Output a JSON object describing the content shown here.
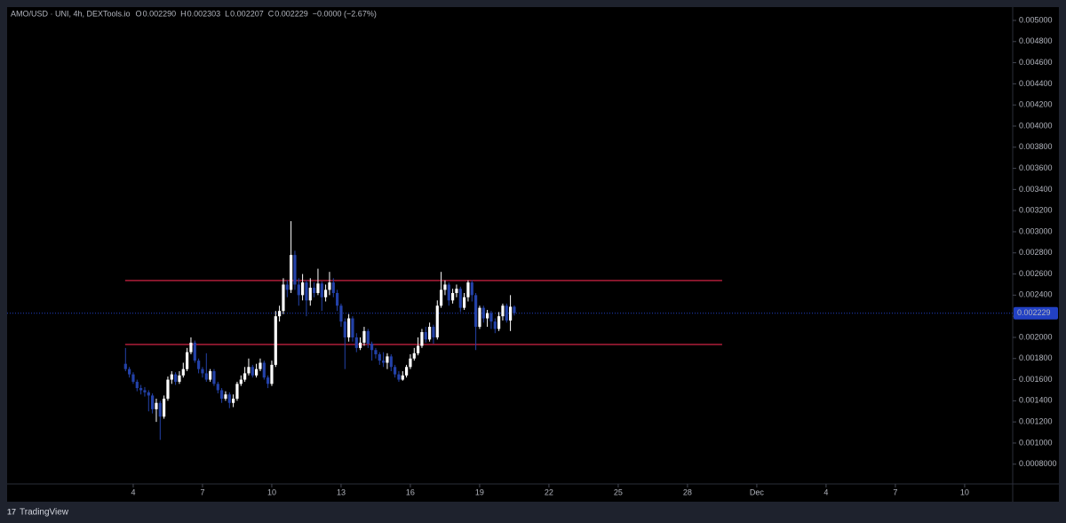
{
  "header": {
    "symbol": "AMO/USD · UNI, 4h, DEXTools.io",
    "ohlc": [
      {
        "key": "O",
        "value": "0.002290"
      },
      {
        "key": "H",
        "value": "0.002303"
      },
      {
        "key": "L",
        "value": "0.002207"
      },
      {
        "key": "C",
        "value": "0.002229"
      }
    ],
    "change": "−0.0000 (−2.67%)"
  },
  "footer": {
    "brand": "TradingView"
  },
  "chart_data": {
    "type": "candlestick",
    "up_color": "#ffffff",
    "down_color": "#2341a8",
    "x": [
      3.667,
      3.833,
      4,
      4.167,
      4.333,
      4.5,
      4.667,
      4.833,
      5,
      5.167,
      5.333,
      5.5,
      5.667,
      5.833,
      6,
      6.167,
      6.333,
      6.5,
      6.667,
      6.833,
      7,
      7.167,
      7.333,
      7.5,
      7.667,
      7.833,
      8,
      8.167,
      8.333,
      8.5,
      8.667,
      8.833,
      9,
      9.167,
      9.333,
      9.5,
      9.667,
      9.833,
      10,
      10.167,
      10.333,
      10.5,
      10.667,
      10.833,
      11,
      11.167,
      11.333,
      11.5,
      11.667,
      11.833,
      12,
      12.167,
      12.333,
      12.5,
      12.667,
      12.833,
      13,
      13.167,
      13.333,
      13.5,
      13.667,
      13.833,
      14,
      14.167,
      14.333,
      14.5,
      14.667,
      14.833,
      15,
      15.167,
      15.333,
      15.5,
      15.667,
      15.833,
      16,
      16.167,
      16.333,
      16.5,
      16.667,
      16.833,
      17,
      17.167,
      17.333,
      17.5,
      17.667,
      17.833,
      18,
      18.167,
      18.333,
      18.5,
      18.667,
      18.833,
      19,
      19.167,
      19.333,
      19.5,
      19.667,
      19.833,
      20,
      20.167,
      20.333,
      20.5
    ],
    "open": [
      0.00175,
      0.0017,
      0.00165,
      0.00158,
      0.00152,
      0.0015,
      0.00148,
      0.00145,
      0.00132,
      0.00138,
      0.00125,
      0.00142,
      0.0016,
      0.00165,
      0.00158,
      0.00164,
      0.0017,
      0.00186,
      0.00195,
      0.00178,
      0.0017,
      0.00166,
      0.0016,
      0.00168,
      0.00156,
      0.0015,
      0.00142,
      0.00146,
      0.00138,
      0.00142,
      0.00156,
      0.0016,
      0.00166,
      0.00172,
      0.00164,
      0.0017,
      0.00176,
      0.00162,
      0.00156,
      0.00174,
      0.0022,
      0.00225,
      0.0025,
      0.00245,
      0.00278,
      0.0025,
      0.0024,
      0.00252,
      0.00235,
      0.00247,
      0.00242,
      0.00251,
      0.00238,
      0.00245,
      0.00252,
      0.00242,
      0.0023,
      0.00215,
      0.002,
      0.00218,
      0.002,
      0.0019,
      0.00195,
      0.00206,
      0.00194,
      0.00188,
      0.00184,
      0.00178,
      0.00176,
      0.00182,
      0.00172,
      0.00165,
      0.0016,
      0.00164,
      0.00172,
      0.0018,
      0.00185,
      0.00192,
      0.00205,
      0.00198,
      0.0021,
      0.002,
      0.0023,
      0.00245,
      0.0025,
      0.00235,
      0.00242,
      0.00246,
      0.00228,
      0.00238,
      0.00252,
      0.0024,
      0.0021,
      0.00228,
      0.00218,
      0.00223,
      0.00215,
      0.00208,
      0.0022,
      0.0023,
      0.00216,
      0.00229
    ],
    "high": [
      0.0019,
      0.00172,
      0.00167,
      0.0016,
      0.00155,
      0.00153,
      0.0015,
      0.00147,
      0.00142,
      0.0014,
      0.00145,
      0.00163,
      0.00168,
      0.00167,
      0.00168,
      0.00176,
      0.0019,
      0.002,
      0.00197,
      0.0018,
      0.00172,
      0.00185,
      0.0017,
      0.0017,
      0.00158,
      0.00152,
      0.00149,
      0.00148,
      0.00146,
      0.00158,
      0.00164,
      0.00172,
      0.0018,
      0.00174,
      0.00175,
      0.0018,
      0.00178,
      0.00164,
      0.00178,
      0.00225,
      0.0023,
      0.00256,
      0.00254,
      0.0031,
      0.00282,
      0.00256,
      0.0026,
      0.00254,
      0.00256,
      0.00252,
      0.00265,
      0.00253,
      0.0025,
      0.00262,
      0.00256,
      0.00245,
      0.00232,
      0.00218,
      0.00222,
      0.0022,
      0.00204,
      0.002,
      0.0021,
      0.00208,
      0.00196,
      0.0019,
      0.00186,
      0.00186,
      0.00185,
      0.00184,
      0.00174,
      0.00168,
      0.00168,
      0.00174,
      0.00184,
      0.0019,
      0.002,
      0.00208,
      0.0021,
      0.00214,
      0.00212,
      0.00235,
      0.00262,
      0.00254,
      0.00252,
      0.00246,
      0.0025,
      0.00248,
      0.00242,
      0.00254,
      0.00254,
      0.00242,
      0.0023,
      0.0023,
      0.00226,
      0.00225,
      0.00218,
      0.00224,
      0.00232,
      0.00232,
      0.0024,
      0.002303
    ],
    "low": [
      0.00168,
      0.00162,
      0.00156,
      0.00149,
      0.00146,
      0.00144,
      0.0013,
      0.00128,
      0.0012,
      0.00103,
      0.00123,
      0.0014,
      0.00156,
      0.00155,
      0.00156,
      0.00162,
      0.00168,
      0.00184,
      0.00176,
      0.00166,
      0.00162,
      0.00158,
      0.00158,
      0.00154,
      0.00147,
      0.00138,
      0.0014,
      0.00133,
      0.00134,
      0.0014,
      0.00154,
      0.00158,
      0.00164,
      0.00162,
      0.00162,
      0.00168,
      0.0016,
      0.00152,
      0.00154,
      0.00172,
      0.00215,
      0.00222,
      0.00238,
      0.00242,
      0.00245,
      0.0023,
      0.00235,
      0.0022,
      0.0023,
      0.00238,
      0.0024,
      0.00225,
      0.00234,
      0.0024,
      0.00238,
      0.00225,
      0.0021,
      0.0017,
      0.00196,
      0.00196,
      0.00186,
      0.00188,
      0.00192,
      0.0019,
      0.00178,
      0.0018,
      0.00174,
      0.00172,
      0.0017,
      0.00168,
      0.00162,
      0.00158,
      0.00159,
      0.00162,
      0.0017,
      0.00178,
      0.00183,
      0.0019,
      0.00195,
      0.00196,
      0.00194,
      0.00198,
      0.00228,
      0.0024,
      0.0023,
      0.00232,
      0.00238,
      0.00224,
      0.00226,
      0.00234,
      0.00234,
      0.00188,
      0.00208,
      0.00214,
      0.0021,
      0.00208,
      0.00204,
      0.00206,
      0.00216,
      0.00214,
      0.00206,
      0.002207
    ],
    "close": [
      0.0017,
      0.00165,
      0.00158,
      0.00152,
      0.0015,
      0.00148,
      0.00145,
      0.00132,
      0.00138,
      0.00125,
      0.00142,
      0.0016,
      0.00165,
      0.00158,
      0.00164,
      0.0017,
      0.00186,
      0.00195,
      0.00178,
      0.0017,
      0.00166,
      0.0016,
      0.00168,
      0.00156,
      0.0015,
      0.00142,
      0.00146,
      0.00138,
      0.00142,
      0.00156,
      0.0016,
      0.00166,
      0.00172,
      0.00164,
      0.0017,
      0.00176,
      0.00162,
      0.00156,
      0.00174,
      0.0022,
      0.00225,
      0.0025,
      0.00245,
      0.00278,
      0.0025,
      0.0024,
      0.00252,
      0.00235,
      0.00247,
      0.00242,
      0.00251,
      0.00238,
      0.00245,
      0.00252,
      0.00242,
      0.0023,
      0.00215,
      0.002,
      0.00218,
      0.002,
      0.0019,
      0.00195,
      0.00206,
      0.00194,
      0.00188,
      0.00184,
      0.00178,
      0.00176,
      0.00182,
      0.00172,
      0.00165,
      0.0016,
      0.00164,
      0.00172,
      0.0018,
      0.00185,
      0.00192,
      0.00205,
      0.00198,
      0.0021,
      0.002,
      0.0023,
      0.00245,
      0.0025,
      0.00235,
      0.00242,
      0.00246,
      0.00228,
      0.00238,
      0.00252,
      0.0024,
      0.0021,
      0.00228,
      0.00218,
      0.00223,
      0.00215,
      0.00208,
      0.0022,
      0.0023,
      0.00216,
      0.00229,
      0.002229
    ],
    "hlines": [
      {
        "value": 0.002538,
        "x": [
          3.65,
          29.5
        ],
        "color": "#e8274d"
      },
      {
        "value": 0.001933,
        "x": [
          3.65,
          29.5
        ],
        "color": "#e8274d"
      }
    ],
    "last_price": {
      "value": 0.002229,
      "label": "0.002229",
      "color": "#2241c4"
    },
    "xlim": [
      -1.46,
      42.08
    ],
    "xticks": [
      4,
      7,
      10,
      13,
      16,
      19,
      22,
      25,
      28,
      {
        "value": 31,
        "label": "Dec"
      },
      {
        "value": 34,
        "label": "4"
      },
      {
        "value": 37,
        "label": "7"
      },
      {
        "value": 40,
        "label": "10"
      }
    ],
    "ylim": [
      0.000613,
      0.005126
    ],
    "yticks": [
      {
        "value": 0.0008,
        "label": "0.0008000"
      },
      {
        "value": 0.001,
        "label": "0.001000"
      },
      {
        "value": 0.0012,
        "label": "0.001200"
      },
      {
        "value": 0.0014,
        "label": "0.001400"
      },
      {
        "value": 0.0016,
        "label": "0.001600"
      },
      {
        "value": 0.0018,
        "label": "0.001800"
      },
      {
        "value": 0.002,
        "label": "0.002000"
      },
      {
        "value": 0.0022,
        "label": "0.002200"
      },
      {
        "value": 0.0024,
        "label": "0.002400"
      },
      {
        "value": 0.0026,
        "label": "0.002600"
      },
      {
        "value": 0.0028,
        "label": "0.002800"
      },
      {
        "value": 0.003,
        "label": "0.003000"
      },
      {
        "value": 0.0032,
        "label": "0.003200"
      },
      {
        "value": 0.0034,
        "label": "0.003400"
      },
      {
        "value": 0.0036,
        "label": "0.003600"
      },
      {
        "value": 0.0038,
        "label": "0.003800"
      },
      {
        "value": 0.004,
        "label": "0.004000"
      },
      {
        "value": 0.0042,
        "label": "0.004200"
      },
      {
        "value": 0.0044,
        "label": "0.004400"
      },
      {
        "value": 0.0046,
        "label": "0.004600"
      },
      {
        "value": 0.0048,
        "label": "0.004800"
      },
      {
        "value": 0.005,
        "label": "0.005000"
      }
    ]
  }
}
